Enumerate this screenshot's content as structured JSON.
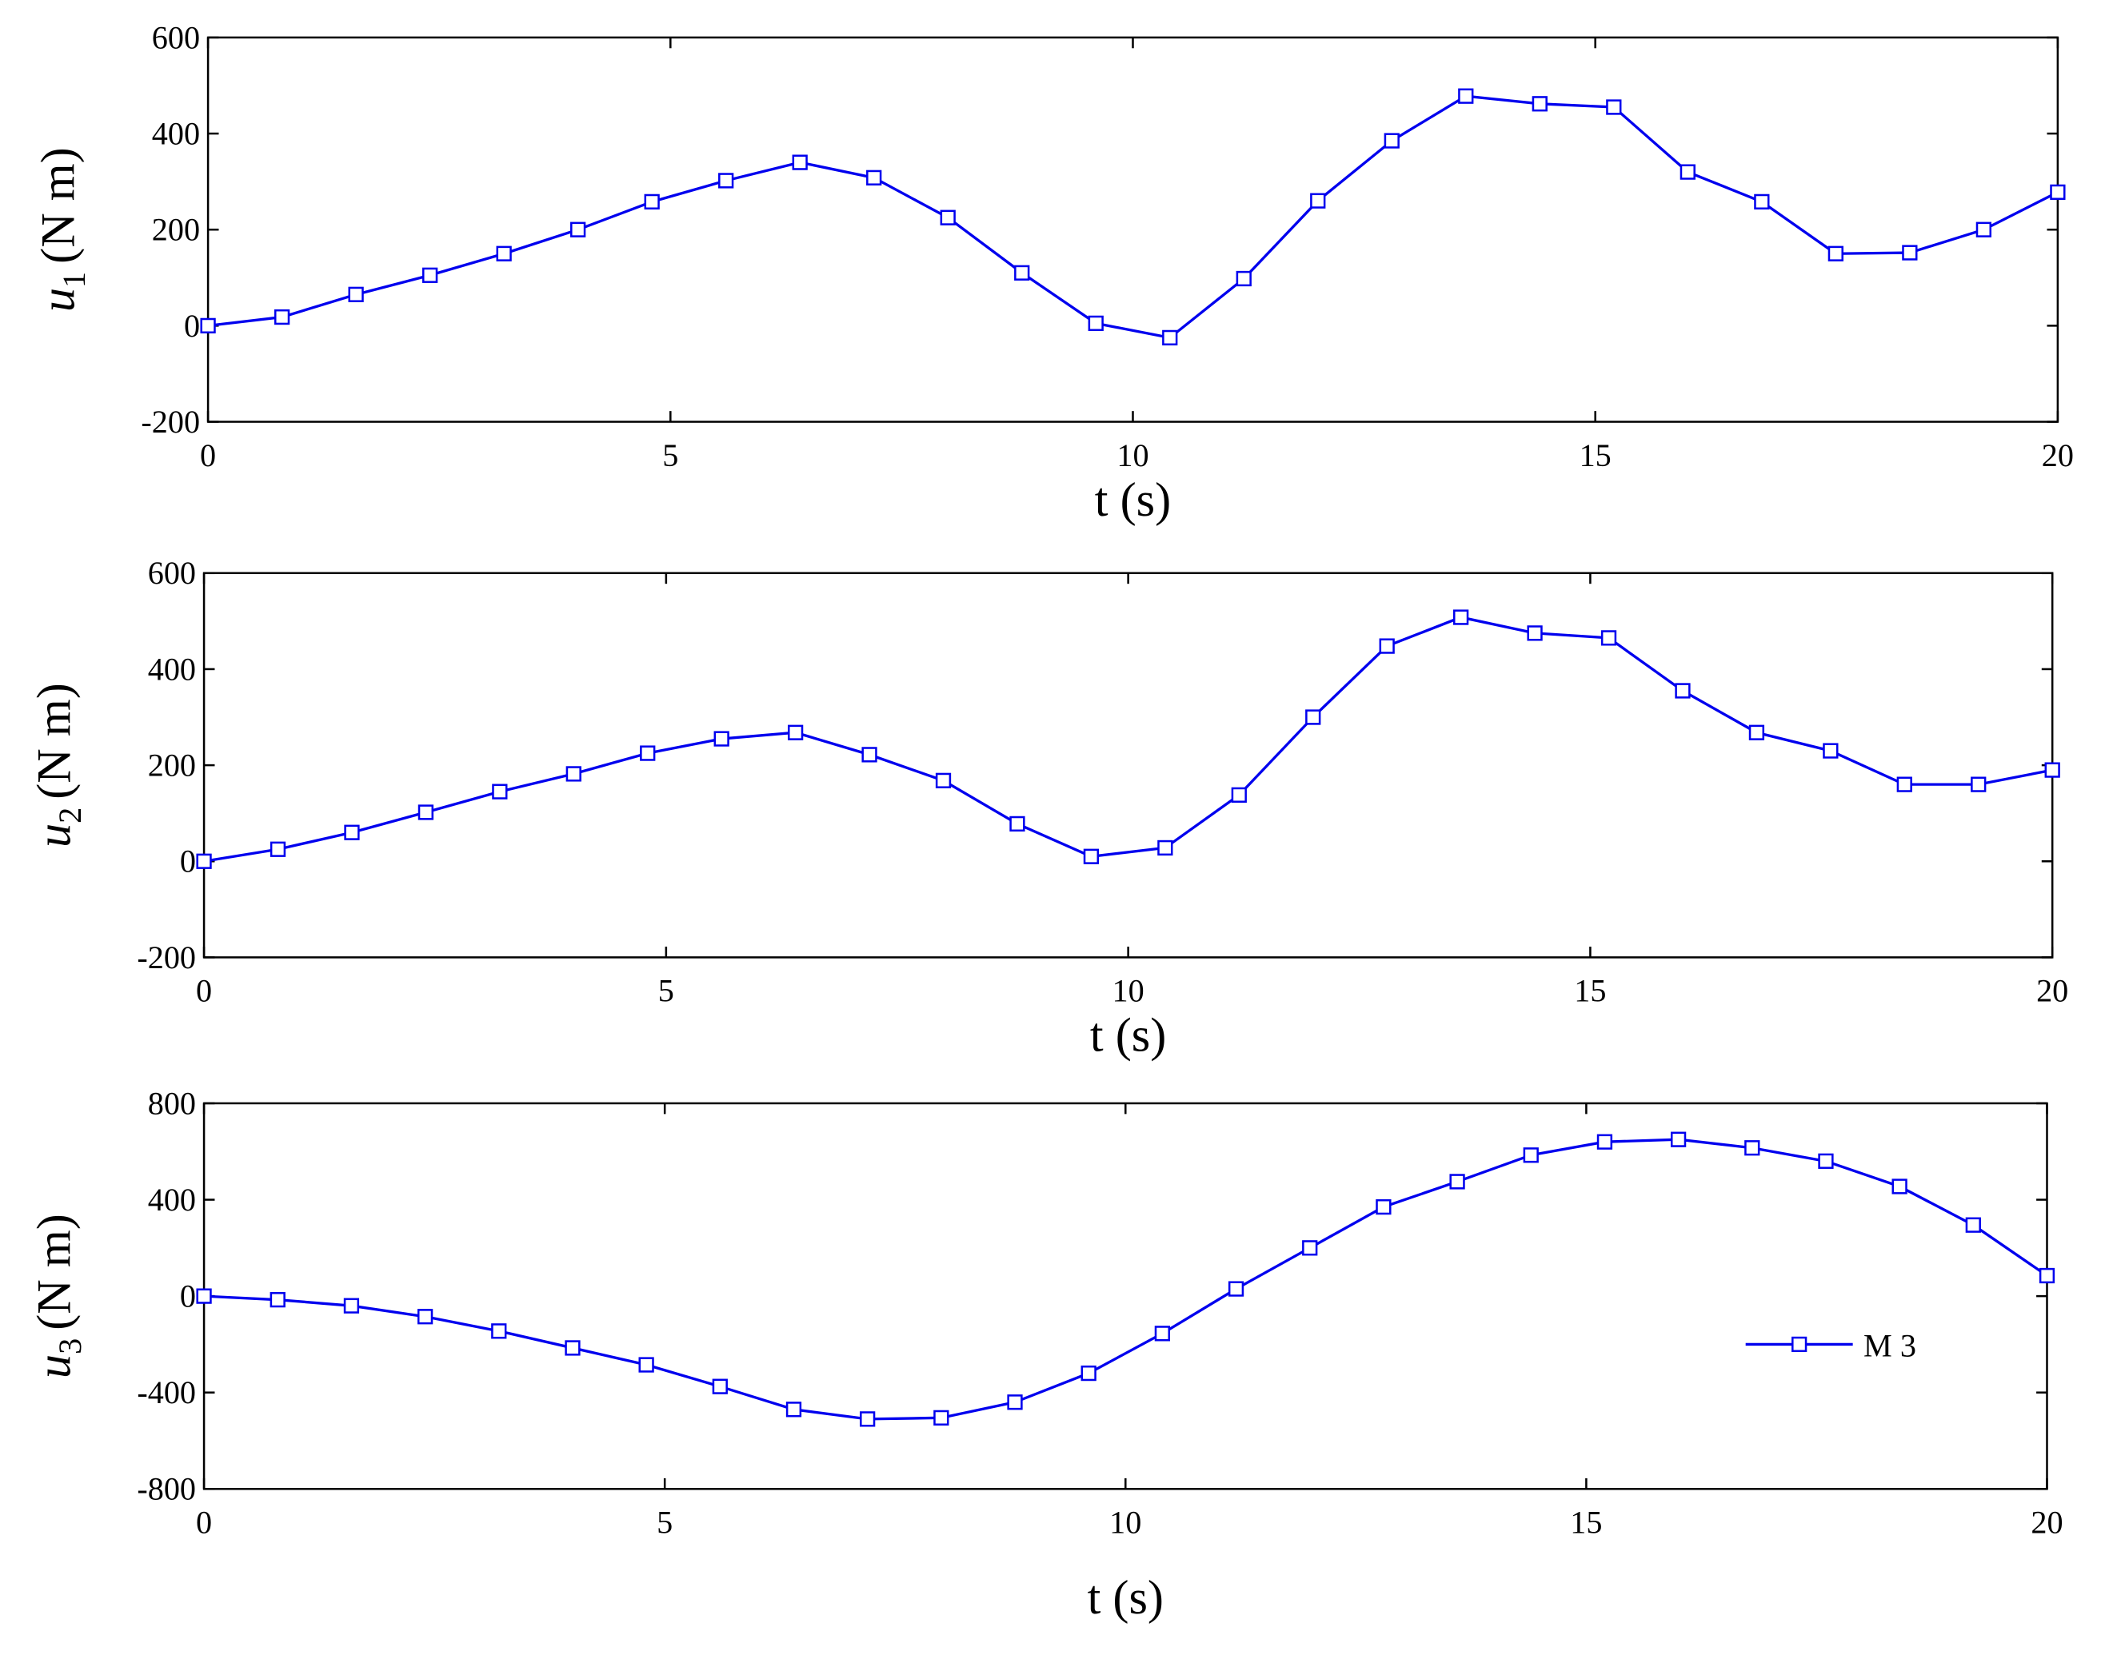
{
  "chart_data": [
    {
      "type": "line",
      "ylabel_symbol": "u",
      "ylabel_subscript": "1",
      "ylabel_unit": "(N m)",
      "xlabel": "t (s)",
      "x": [
        0,
        0.8,
        1.6,
        2.4,
        3.2,
        4.0,
        4.8,
        5.6,
        6.4,
        7.2,
        8.0,
        8.8,
        9.6,
        10.4,
        11.2,
        12.0,
        12.8,
        13.6,
        14.4,
        15.2,
        16.0,
        16.8,
        17.6,
        18.4,
        19.2,
        20
      ],
      "series": [
        {
          "color": "#0000ee",
          "values": [
            0,
            18,
            65,
            105,
            150,
            200,
            258,
            302,
            340,
            308,
            225,
            110,
            5,
            -25,
            98,
            260,
            385,
            478,
            462,
            455,
            320,
            258,
            150,
            152,
            200,
            278
          ]
        }
      ],
      "xlim": [
        0,
        20
      ],
      "xticks": [
        0,
        5,
        10,
        15,
        20
      ],
      "ylim": [
        -200,
        600
      ],
      "yticks": [
        -200,
        0,
        200,
        400,
        600
      ]
    },
    {
      "type": "line",
      "ylabel_symbol": "u",
      "ylabel_subscript": "2",
      "ylabel_unit": "(N m)",
      "xlabel": "t (s)",
      "x": [
        0,
        0.8,
        1.6,
        2.4,
        3.2,
        4.0,
        4.8,
        5.6,
        6.4,
        7.2,
        8.0,
        8.8,
        9.6,
        10.4,
        11.2,
        12.0,
        12.8,
        13.6,
        14.4,
        15.2,
        16.0,
        16.8,
        17.6,
        18.4,
        19.2,
        20
      ],
      "series": [
        {
          "color": "#0000ee",
          "values": [
            0,
            25,
            60,
            102,
            145,
            182,
            225,
            255,
            268,
            222,
            168,
            78,
            10,
            28,
            138,
            300,
            448,
            508,
            475,
            465,
            355,
            268,
            230,
            160,
            160,
            190
          ]
        }
      ],
      "xlim": [
        0,
        20
      ],
      "xticks": [
        0,
        5,
        10,
        15,
        20
      ],
      "ylim": [
        -200,
        600
      ],
      "yticks": [
        -200,
        0,
        200,
        400,
        600
      ]
    },
    {
      "type": "line",
      "ylabel_symbol": "u",
      "ylabel_subscript": "3",
      "ylabel_unit": "(N m)",
      "xlabel": "t (s)",
      "x": [
        0,
        0.8,
        1.6,
        2.4,
        3.2,
        4.0,
        4.8,
        5.6,
        6.4,
        7.2,
        8.0,
        8.8,
        9.6,
        10.4,
        11.2,
        12.0,
        12.8,
        13.6,
        14.4,
        15.2,
        16.0,
        16.8,
        17.6,
        18.4,
        19.2,
        20
      ],
      "series": [
        {
          "name": "M 3",
          "color": "#0000ee",
          "values": [
            0,
            -15,
            -40,
            -85,
            -145,
            -215,
            -285,
            -375,
            -470,
            -510,
            -505,
            -440,
            -320,
            -155,
            30,
            200,
            370,
            475,
            585,
            640,
            650,
            615,
            560,
            455,
            295,
            85
          ]
        }
      ],
      "xlim": [
        0,
        20
      ],
      "xticks": [
        0,
        5,
        10,
        15,
        20
      ],
      "ylim": [
        -800,
        800
      ],
      "yticks": [
        -800,
        -400,
        0,
        400,
        800
      ],
      "legend": "lower right"
    }
  ]
}
